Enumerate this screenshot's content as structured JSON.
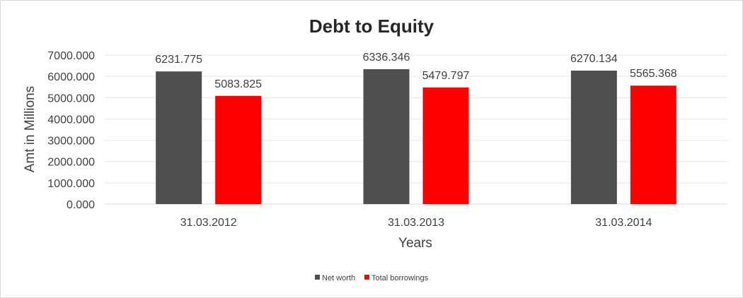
{
  "chart_data": {
    "type": "bar",
    "title": "Debt to Equity",
    "xlabel": "Years",
    "ylabel": "Amt in Millions",
    "categories": [
      "31.03.2012",
      "31.03.2013",
      "31.03.2014"
    ],
    "series": [
      {
        "name": "Net worth",
        "color": "#4f4f4f",
        "values": [
          6231.775,
          6336.346,
          6270.134
        ]
      },
      {
        "name": "Total borrowings",
        "color": "#ff0000",
        "values": [
          5083.825,
          5479.797,
          5565.368
        ]
      }
    ],
    "data_labels": [
      [
        "6231.775",
        "6336.346",
        "6270.134"
      ],
      [
        "5083.825",
        "5479.797",
        "5565.368"
      ]
    ],
    "ylim": [
      0,
      7000
    ],
    "ytick_labels": [
      "0.000",
      "1000.000",
      "2000.000",
      "3000.000",
      "4000.000",
      "5000.000",
      "6000.000",
      "7000.000"
    ],
    "grid": true,
    "legend_position": "bottom"
  }
}
